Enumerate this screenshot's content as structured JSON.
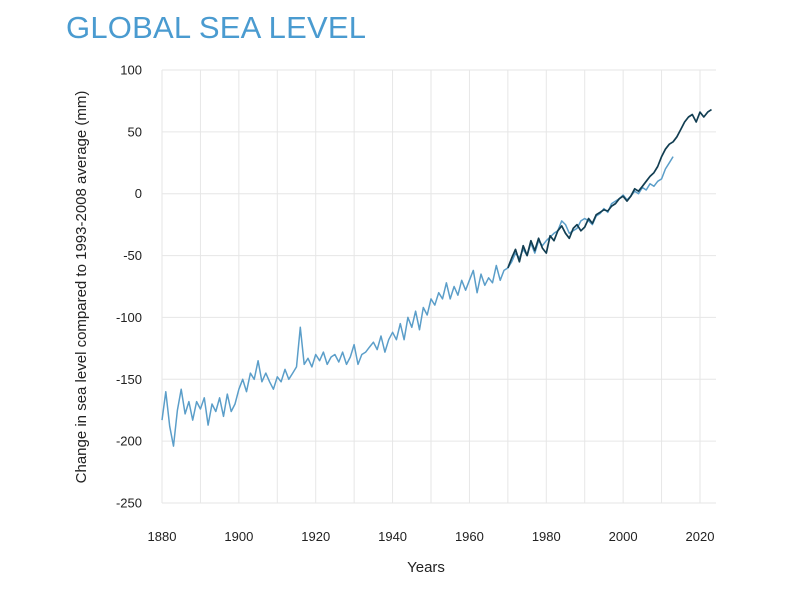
{
  "chart_data": {
    "type": "line",
    "title": "GLOBAL SEA LEVEL",
    "xlabel": "Years",
    "ylabel": "Change in sea level compared to 1993-2008 average (mm)",
    "xlim": [
      1880,
      2023
    ],
    "ylim": [
      -250,
      100
    ],
    "xticks": [
      1880,
      1900,
      1920,
      1940,
      1960,
      1980,
      2000,
      2020
    ],
    "yticks": [
      100,
      50,
      0,
      -50,
      -100,
      -150,
      -200,
      -250
    ],
    "grid": true,
    "legend": "none",
    "series": [
      {
        "color": "#5b9ec9",
        "x": [
          1880,
          1881,
          1882,
          1883,
          1884,
          1885,
          1886,
          1887,
          1888,
          1889,
          1890,
          1891,
          1892,
          1893,
          1894,
          1895,
          1896,
          1897,
          1898,
          1899,
          1900,
          1901,
          1902,
          1903,
          1904,
          1905,
          1906,
          1907,
          1908,
          1909,
          1910,
          1911,
          1912,
          1913,
          1914,
          1915,
          1916,
          1917,
          1918,
          1919,
          1920,
          1921,
          1922,
          1923,
          1924,
          1925,
          1926,
          1927,
          1928,
          1929,
          1930,
          1931,
          1932,
          1933,
          1934,
          1935,
          1936,
          1937,
          1938,
          1939,
          1940,
          1941,
          1942,
          1943,
          1944,
          1945,
          1946,
          1947,
          1948,
          1949,
          1950,
          1951,
          1952,
          1953,
          1954,
          1955,
          1956,
          1957,
          1958,
          1959,
          1960,
          1961,
          1962,
          1963,
          1964,
          1965,
          1966,
          1967,
          1968,
          1969,
          1970,
          1971,
          1972,
          1973,
          1974,
          1975,
          1976,
          1977,
          1978,
          1979,
          1980,
          1981,
          1982,
          1983,
          1984,
          1985,
          1986,
          1987,
          1988,
          1989,
          1990,
          1991,
          1992,
          1993,
          1994,
          1995,
          1996,
          1997,
          1998,
          1999,
          2000,
          2001,
          2002,
          2003,
          2004,
          2005,
          2006,
          2007,
          2008,
          2009,
          2010,
          2011,
          2012,
          2013
        ],
        "y": [
          -183,
          -160,
          -188,
          -204,
          -175,
          -158,
          -178,
          -168,
          -183,
          -168,
          -174,
          -165,
          -187,
          -170,
          -176,
          -165,
          -180,
          -162,
          -176,
          -170,
          -158,
          -150,
          -160,
          -145,
          -150,
          -135,
          -152,
          -145,
          -152,
          -158,
          -148,
          -152,
          -142,
          -150,
          -145,
          -140,
          -108,
          -138,
          -133,
          -140,
          -130,
          -135,
          -128,
          -138,
          -132,
          -130,
          -136,
          -128,
          -138,
          -132,
          -122,
          -138,
          -130,
          -128,
          -124,
          -120,
          -126,
          -115,
          -128,
          -118,
          -112,
          -118,
          -105,
          -118,
          -100,
          -108,
          -95,
          -110,
          -92,
          -98,
          -85,
          -90,
          -80,
          -85,
          -72,
          -85,
          -75,
          -82,
          -70,
          -78,
          -70,
          -62,
          -80,
          -65,
          -74,
          -68,
          -72,
          -58,
          -70,
          -62,
          -60,
          -55,
          -48,
          -52,
          -45,
          -50,
          -40,
          -48,
          -38,
          -42,
          -38,
          -35,
          -32,
          -30,
          -22,
          -25,
          -32,
          -30,
          -28,
          -22,
          -20,
          -22,
          -25,
          -18,
          -16,
          -12,
          -15,
          -8,
          -6,
          -4,
          -1,
          -5,
          -2,
          2,
          0,
          5,
          3,
          8,
          6,
          10,
          12,
          20,
          25,
          30
        ]
      },
      {
        "color": "#123e52",
        "x": [
          1970,
          1971,
          1972,
          1973,
          1974,
          1975,
          1976,
          1977,
          1978,
          1979,
          1980,
          1981,
          1982,
          1983,
          1984,
          1985,
          1986,
          1987,
          1988,
          1989,
          1990,
          1991,
          1992,
          1993,
          1994,
          1995,
          1996,
          1997,
          1998,
          1999,
          2000,
          2001,
          2002,
          2003,
          2004,
          2005,
          2006,
          2007,
          2008,
          2009,
          2010,
          2011,
          2012,
          2013,
          2014,
          2015,
          2016,
          2017,
          2018,
          2019,
          2020,
          2021,
          2022,
          2023
        ],
        "y": [
          -60,
          -52,
          -45,
          -55,
          -42,
          -50,
          -38,
          -46,
          -36,
          -44,
          -48,
          -34,
          -38,
          -30,
          -26,
          -32,
          -36,
          -28,
          -25,
          -30,
          -27,
          -20,
          -24,
          -17,
          -15,
          -13,
          -14,
          -10,
          -8,
          -4,
          -2,
          -6,
          -2,
          4,
          2,
          6,
          10,
          14,
          17,
          22,
          30,
          36,
          40,
          42,
          46,
          52,
          58,
          62,
          64,
          58,
          66,
          62,
          66,
          68
        ]
      }
    ]
  }
}
